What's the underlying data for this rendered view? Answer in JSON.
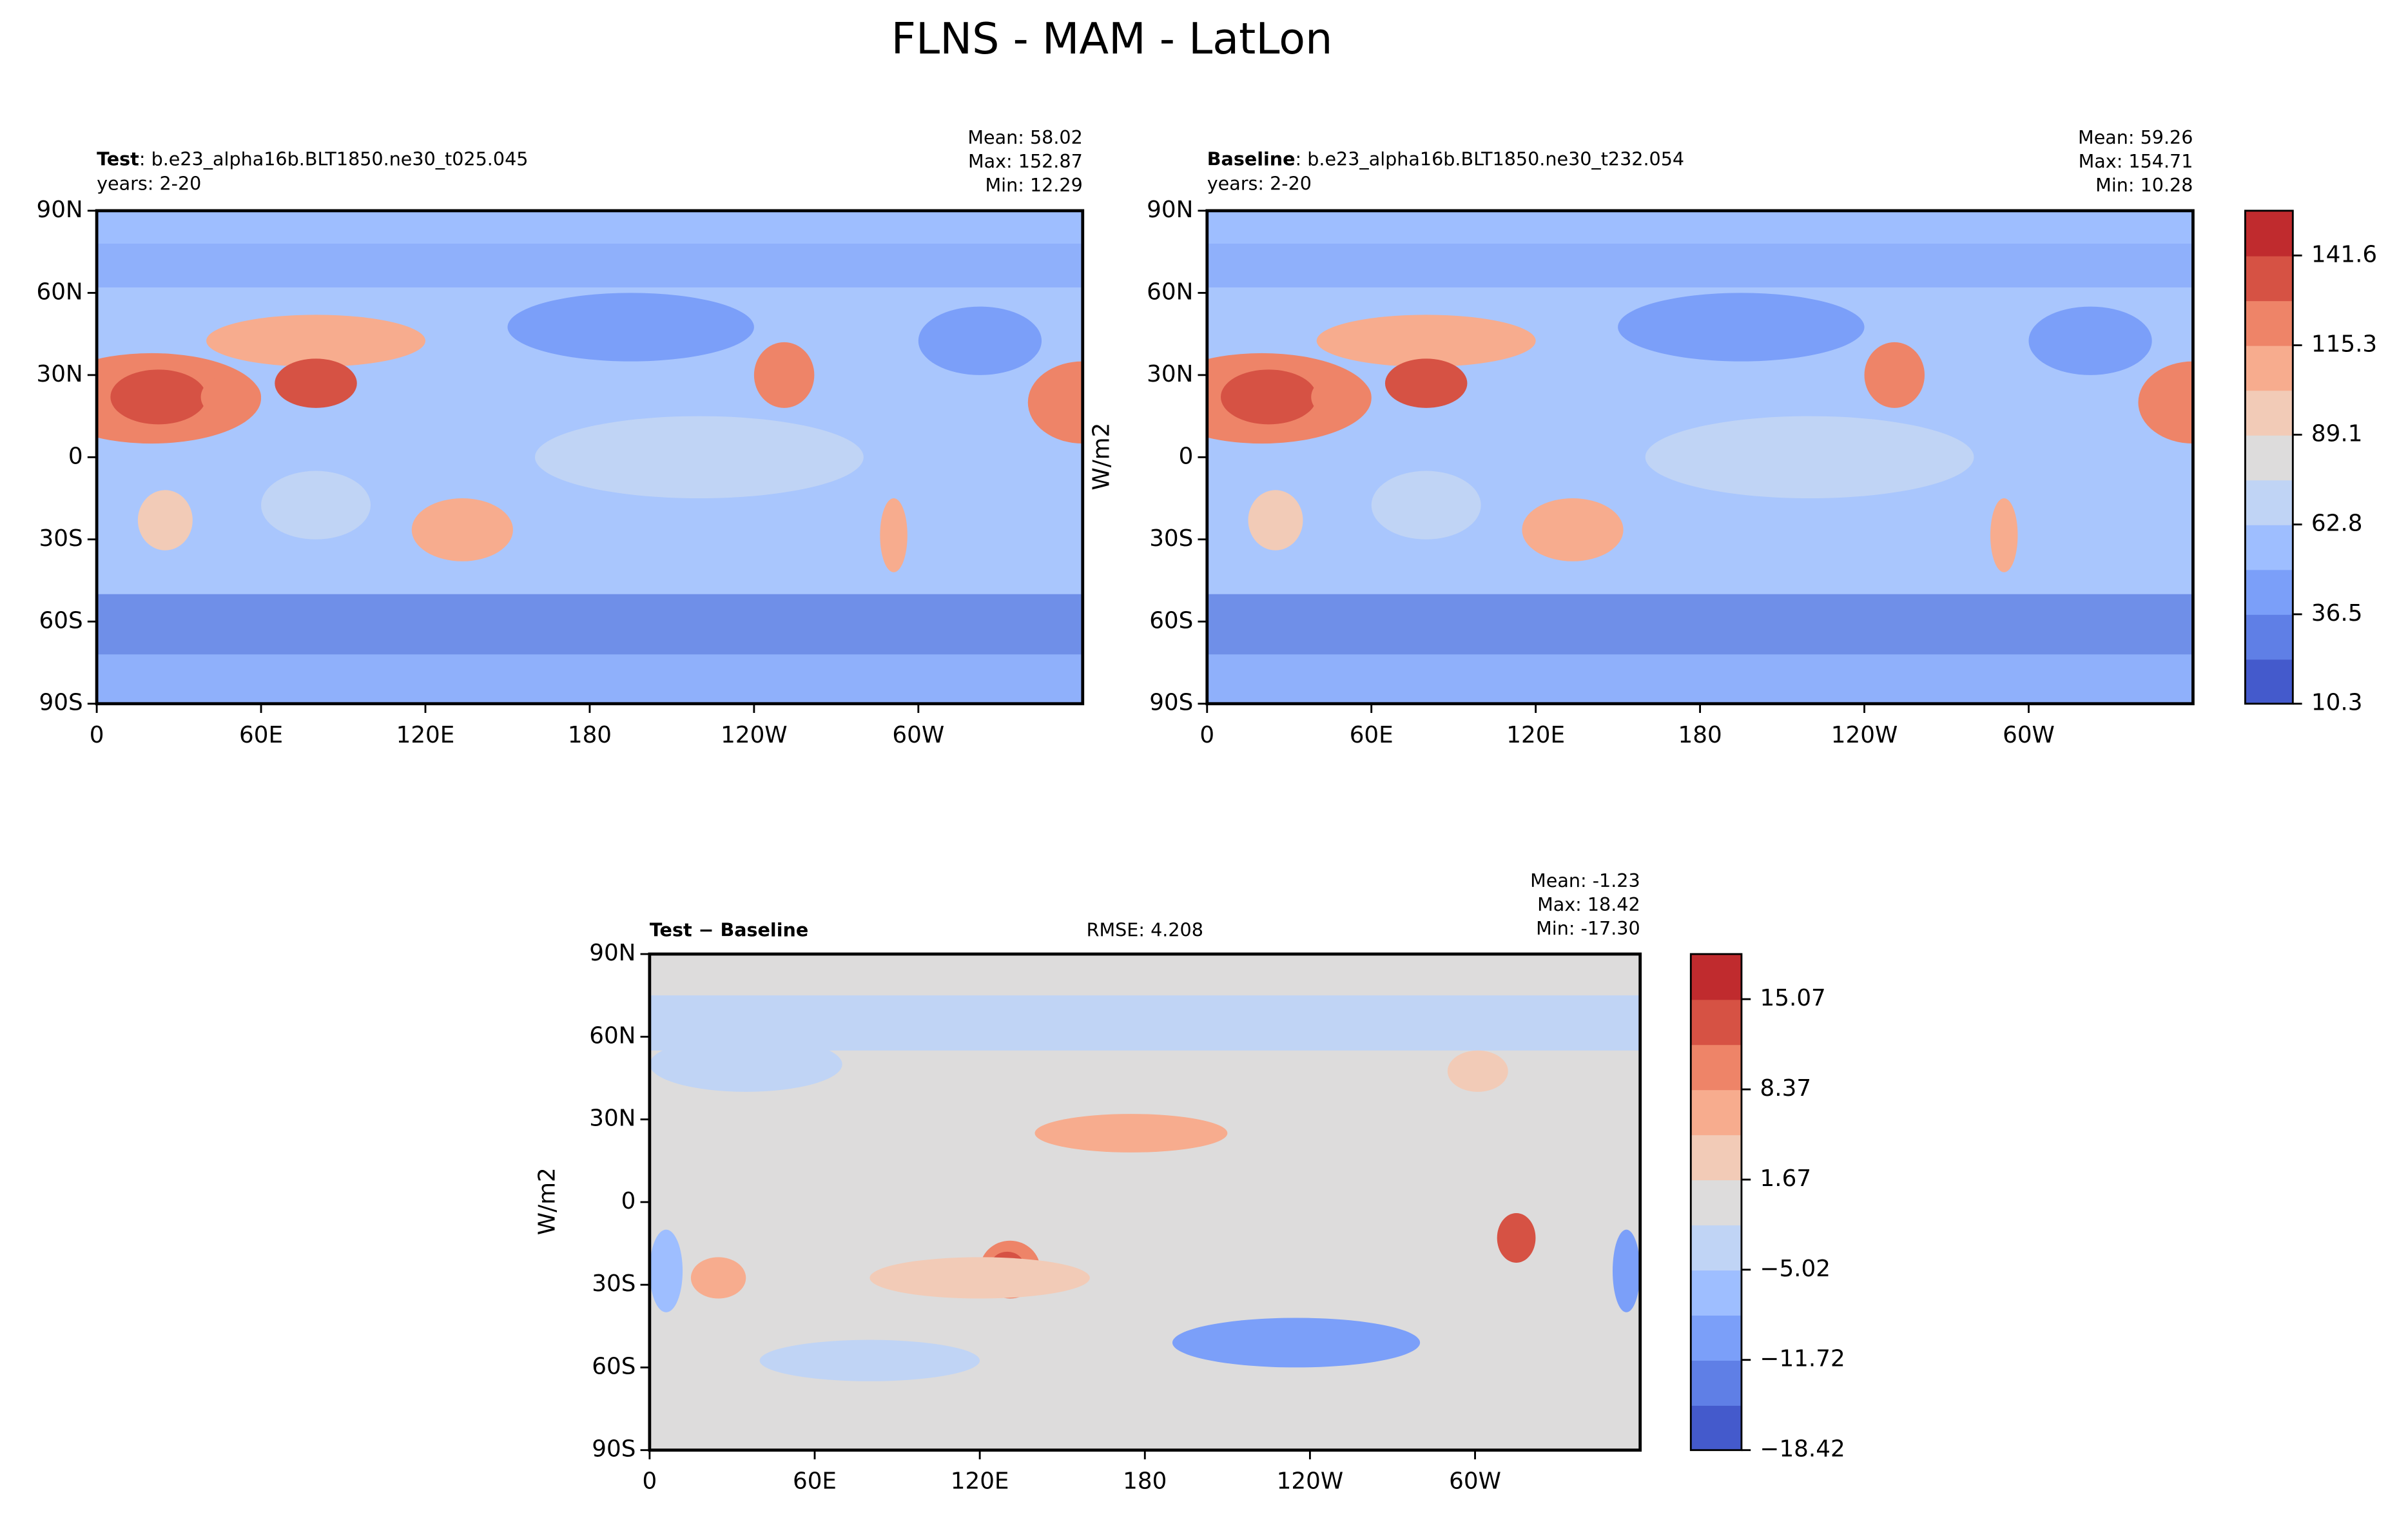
{
  "title": "FLNS - MAM - LatLon",
  "panels": [
    {
      "name": "Test",
      "description": ": b.e23_alpha16b.BLT1850.ne30_t025.045",
      "years": "years: 2-20",
      "stats": [
        "Mean: 58.02",
        "Max: 152.87",
        "Min: 12.29"
      ],
      "xlim": [
        0,
        360
      ],
      "ylim": [
        -90,
        90
      ],
      "xticks": [
        0,
        {
          "value": 60,
          "label": "60E"
        },
        {
          "value": 120,
          "label": "120E"
        },
        180,
        {
          "value": 240,
          "label": "120W"
        },
        {
          "value": 300,
          "label": "60W"
        }
      ],
      "yticks": [
        {
          "value": 90,
          "label": "90N"
        },
        {
          "value": 60,
          "label": "60N"
        },
        {
          "value": 30,
          "label": "30N"
        },
        0,
        {
          "value": -30,
          "label": "30S"
        },
        {
          "value": -60,
          "label": "60S"
        },
        {
          "value": -90,
          "label": "90S"
        }
      ]
    },
    {
      "name": "Baseline",
      "description": ": b.e23_alpha16b.BLT1850.ne30_t232.054",
      "years": "years: 2-20",
      "stats": [
        "Mean: 59.26",
        "Max: 154.71",
        "Min: 10.28"
      ],
      "xlim": [
        0,
        360
      ],
      "ylim": [
        -90,
        90
      ],
      "xticks": [
        0,
        {
          "value": 60,
          "label": "60E"
        },
        {
          "value": 120,
          "label": "120E"
        },
        180,
        {
          "value": 240,
          "label": "120W"
        },
        {
          "value": 300,
          "label": "60W"
        }
      ],
      "yticks": [
        {
          "value": 90,
          "label": "90N"
        },
        {
          "value": 60,
          "label": "60N"
        },
        {
          "value": 30,
          "label": "30N"
        },
        0,
        {
          "value": -30,
          "label": "30S"
        },
        {
          "value": -60,
          "label": "60S"
        },
        {
          "value": -90,
          "label": "90S"
        }
      ]
    },
    {
      "name": "Test − Baseline",
      "rmse": "RMSE: 4.208",
      "stats": [
        "Mean: -1.23",
        "Max: 18.42",
        "Min: -17.30"
      ],
      "xlim": [
        0,
        360
      ],
      "ylim": [
        -90,
        90
      ],
      "xticks": [
        0,
        {
          "value": 60,
          "label": "60E"
        },
        {
          "value": 120,
          "label": "120E"
        },
        180,
        {
          "value": 240,
          "label": "120W"
        },
        {
          "value": 300,
          "label": "60W"
        }
      ],
      "yticks": [
        {
          "value": 90,
          "label": "90N"
        },
        {
          "value": 60,
          "label": "60N"
        },
        {
          "value": 30,
          "label": "30N"
        },
        0,
        {
          "value": -30,
          "label": "30S"
        },
        {
          "value": -60,
          "label": "60S"
        },
        {
          "value": -90,
          "label": "90S"
        }
      ]
    }
  ],
  "colorbars": [
    {
      "label": "W/m2",
      "lim": [
        10.3,
        154.71
      ],
      "ticks": [
        10.3,
        36.5,
        62.8,
        89.1,
        115.3,
        141.6
      ],
      "colors": [
        "#445acc",
        "#5f7fe6",
        "#7b9ff9",
        "#9ebeff",
        "#c0d4f5",
        "#dddcdc",
        "#f2cbb7",
        "#f7ac8e",
        "#ee8468",
        "#d65244",
        "#c02b2e"
      ]
    },
    {
      "label": "W/m2",
      "lim": [
        -18.42,
        18.42
      ],
      "ticks": [
        {
          "value": -18.42,
          "label": "−18.42"
        },
        {
          "value": -11.72,
          "label": "−11.72"
        },
        {
          "value": -5.02,
          "label": "−5.02"
        },
        1.67,
        8.37,
        15.07
      ],
      "colors": [
        "#445acc",
        "#5f7fe6",
        "#7b9ff9",
        "#9ebeff",
        "#c0d4f5",
        "#dddcdc",
        "#f2cbb7",
        "#f7ac8e",
        "#ee8468",
        "#d65244",
        "#c02b2e"
      ]
    }
  ]
}
